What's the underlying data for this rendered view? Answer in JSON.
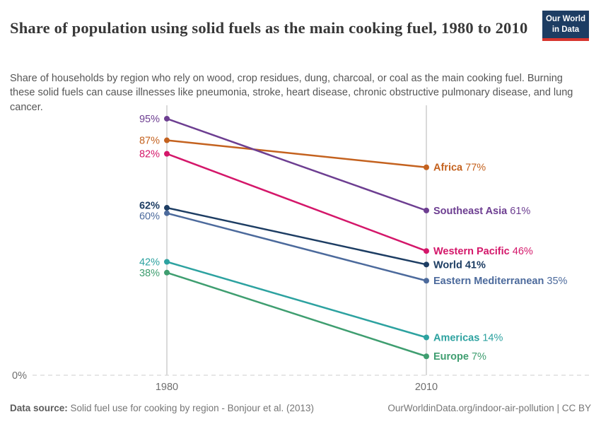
{
  "header": {
    "logo": {
      "line1": "Our World",
      "line2": "in Data"
    }
  },
  "chart_data": {
    "type": "line",
    "variant": "slope",
    "title": "Share of population using solid fuels as the main cooking fuel, 1980 to 2010",
    "subtitle": "Share of households by region who rely on wood, crop residues, dung, charcoal, or coal as the main cooking fuel. Burning these solid fuels can cause illnesses like pneumonia, stroke, heart disease, chronic obstructive pulmonary disease, and lung cancer.",
    "x": [
      1980,
      2010
    ],
    "x_tick_labels": [
      "1980",
      "2010"
    ],
    "ylim": [
      0,
      100
    ],
    "y_zero_label": "0%",
    "value_suffix": "%",
    "grid": "two vertical year lines and dashed zero baseline",
    "legend_position": "inline-right-of-lines",
    "series": [
      {
        "name": "Africa",
        "values": [
          87,
          77
        ],
        "color": "#c4621f",
        "bold": false
      },
      {
        "name": "Southeast Asia",
        "values": [
          95,
          61
        ],
        "color": "#6d3e91",
        "bold": false
      },
      {
        "name": "Western Pacific",
        "values": [
          82,
          46
        ],
        "color": "#d4176a",
        "bold": false
      },
      {
        "name": "World",
        "values": [
          62,
          41
        ],
        "color": "#1d3d63",
        "bold": true
      },
      {
        "name": "Eastern Mediterranean",
        "values": [
          60,
          35
        ],
        "color": "#4c6a9c",
        "bold": false
      },
      {
        "name": "Americas",
        "values": [
          42,
          14
        ],
        "color": "#2da2a0",
        "bold": false
      },
      {
        "name": "Europe",
        "values": [
          38,
          7
        ],
        "color": "#3f9e70",
        "bold": false
      }
    ]
  },
  "footer": {
    "datasource_label": "Data source:",
    "datasource_text": " Solid fuel use for cooking by region - Bonjour et al. (2013)",
    "url_text": "OurWorldinData.org/indoor-air-pollution | CC BY"
  }
}
